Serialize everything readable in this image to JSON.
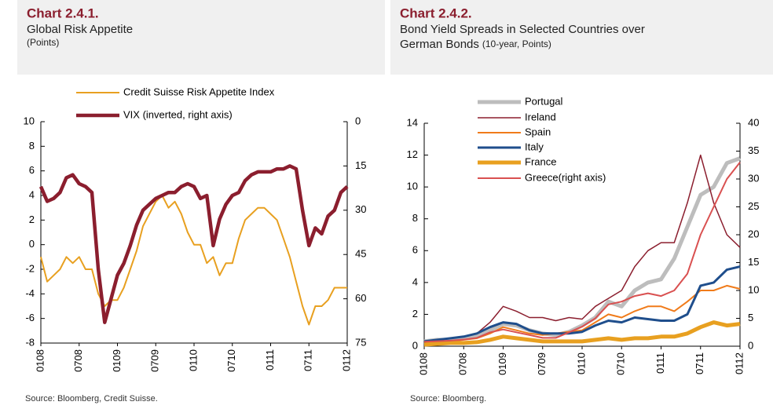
{
  "chart_data": [
    {
      "type": "line",
      "title": "Chart 2.4.1.",
      "subtitle": [
        "Global Risk Appetite"
      ],
      "unit": "(Points)",
      "source": "Source: Bloomberg, Credit Suisse.",
      "x": [
        0,
        1,
        2,
        3,
        4,
        5,
        6,
        7,
        8,
        9,
        10,
        11,
        12,
        13,
        14,
        15,
        16,
        17,
        18,
        19,
        20,
        21,
        22,
        23,
        24,
        25,
        26,
        27,
        28,
        29,
        30,
        31,
        32,
        33,
        34,
        35,
        36,
        37,
        38,
        39,
        40,
        41,
        42,
        43,
        44,
        45,
        46,
        47,
        48
      ],
      "xlim": [
        0,
        48
      ],
      "xticks": [
        {
          "value": 0,
          "label": "0108"
        },
        {
          "value": 6,
          "label": "0708"
        },
        {
          "value": 12,
          "label": "0109"
        },
        {
          "value": 18,
          "label": "0709"
        },
        {
          "value": 24,
          "label": "0110"
        },
        {
          "value": 30,
          "label": "0710"
        },
        {
          "value": 36,
          "label": "0111"
        },
        {
          "value": 42,
          "label": "0711"
        },
        {
          "value": 48,
          "label": "0112"
        }
      ],
      "ylim": [
        -8,
        10
      ],
      "yticks": [
        -8,
        -6,
        -4,
        -2,
        0,
        2,
        4,
        6,
        8,
        10
      ],
      "y2lim": [
        75,
        0
      ],
      "y2ticks": [
        0,
        15,
        30,
        45,
        60,
        75
      ],
      "series": [
        {
          "name": "Credit Suisse Risk Appetite Index",
          "color": "#e8a020",
          "values": [
            -1,
            -3,
            -2.5,
            -2,
            -1,
            -1.5,
            -1,
            -2,
            -2,
            -4,
            -5,
            -4.5,
            -4.5,
            -3.5,
            -2,
            -0.5,
            1.5,
            2.5,
            3.5,
            4,
            3,
            3.5,
            2.5,
            1,
            0,
            0,
            -1.5,
            -1,
            -2.5,
            -1.5,
            -1.5,
            0.5,
            2,
            2.5,
            3,
            3,
            2.5,
            2,
            0.5,
            -1,
            -3,
            -5,
            -6.5,
            -5,
            -5,
            -4.5,
            -3.5,
            -3.5,
            -3.5
          ]
        },
        {
          "name": "VIX (inverted, right axis)",
          "color": "#8b1e2e",
          "axis": "y2",
          "values": [
            22,
            27,
            26,
            24,
            19,
            18,
            21,
            22,
            24,
            50,
            68,
            60,
            52,
            48,
            42,
            35,
            30,
            28,
            26,
            25,
            24,
            24,
            22,
            21,
            22,
            26,
            25,
            42,
            33,
            28,
            25,
            24,
            20,
            18,
            17,
            17,
            17,
            16,
            16,
            15,
            16,
            30,
            42,
            36,
            38,
            32,
            30,
            24,
            22
          ]
        }
      ]
    },
    {
      "type": "line",
      "title": "Chart 2.4.2.",
      "subtitle": [
        "Bond Yield Spreads in Selected Countries over",
        "German Bonds"
      ],
      "unit": "(10-year, Points)",
      "source": "Source: Bloomberg.",
      "x": [
        0,
        2,
        4,
        6,
        8,
        10,
        12,
        14,
        16,
        18,
        20,
        22,
        24,
        26,
        28,
        30,
        32,
        34,
        36,
        38,
        40,
        42,
        44,
        46,
        48
      ],
      "xlim": [
        0,
        48
      ],
      "xticks": [
        {
          "value": 0,
          "label": "0108"
        },
        {
          "value": 6,
          "label": "0708"
        },
        {
          "value": 12,
          "label": "0109"
        },
        {
          "value": 18,
          "label": "0709"
        },
        {
          "value": 24,
          "label": "0110"
        },
        {
          "value": 30,
          "label": "0710"
        },
        {
          "value": 36,
          "label": "0111"
        },
        {
          "value": 42,
          "label": "0711"
        },
        {
          "value": 48,
          "label": "0112"
        }
      ],
      "ylim": [
        0,
        14
      ],
      "yticks": [
        0,
        2,
        4,
        6,
        8,
        10,
        12,
        14
      ],
      "y2lim": [
        0,
        40
      ],
      "y2ticks": [
        0,
        5,
        10,
        15,
        20,
        25,
        30,
        35,
        40
      ],
      "series": [
        {
          "name": "Portugal",
          "color": "#bdbdbd",
          "values": [
            0.3,
            0.4,
            0.4,
            0.5,
            0.6,
            1.0,
            1.4,
            1.3,
            1.0,
            0.8,
            0.7,
            0.9,
            1.3,
            1.8,
            2.8,
            2.5,
            3.5,
            4.0,
            4.2,
            5.5,
            7.5,
            9.5,
            10,
            11.5,
            11.8
          ]
        },
        {
          "name": "Ireland",
          "color": "#8b1e2e",
          "values": [
            0.3,
            0.4,
            0.5,
            0.6,
            0.8,
            1.5,
            2.5,
            2.2,
            1.8,
            1.8,
            1.6,
            1.8,
            1.7,
            2.5,
            3.0,
            3.5,
            5.0,
            6.0,
            6.5,
            6.5,
            9.0,
            12.0,
            9,
            7,
            6.2
          ]
        },
        {
          "name": "Spain",
          "color": "#f07b1a",
          "values": [
            0.2,
            0.3,
            0.3,
            0.4,
            0.5,
            0.8,
            1.2,
            1.0,
            0.8,
            0.7,
            0.8,
            0.9,
            1.0,
            1.5,
            2.0,
            1.8,
            2.2,
            2.5,
            2.5,
            2.2,
            2.8,
            3.5,
            3.5,
            3.8,
            3.6
          ]
        },
        {
          "name": "Italy",
          "color": "#1f4e8c",
          "values": [
            0.3,
            0.4,
            0.5,
            0.6,
            0.8,
            1.2,
            1.5,
            1.4,
            1.0,
            0.8,
            0.8,
            0.8,
            0.9,
            1.3,
            1.6,
            1.5,
            1.8,
            1.7,
            1.6,
            1.6,
            2.0,
            3.8,
            4.0,
            4.8,
            5.0
          ]
        },
        {
          "name": "France",
          "color": "#e8a020",
          "values": [
            0.1,
            0.15,
            0.2,
            0.2,
            0.25,
            0.4,
            0.6,
            0.5,
            0.4,
            0.3,
            0.3,
            0.3,
            0.3,
            0.4,
            0.5,
            0.4,
            0.5,
            0.5,
            0.6,
            0.6,
            0.8,
            1.2,
            1.5,
            1.3,
            1.4
          ]
        },
        {
          "name": "Greece(right axis)",
          "color": "#d95050",
          "axis": "y2",
          "values": [
            0.8,
            0.9,
            1.0,
            1.2,
            1.5,
            2.5,
            3.0,
            2.5,
            2.0,
            1.5,
            1.5,
            2.5,
            3.5,
            5.0,
            7.5,
            8.0,
            9.0,
            9.5,
            9.0,
            10,
            13,
            20,
            25,
            30,
            33
          ]
        }
      ]
    }
  ]
}
